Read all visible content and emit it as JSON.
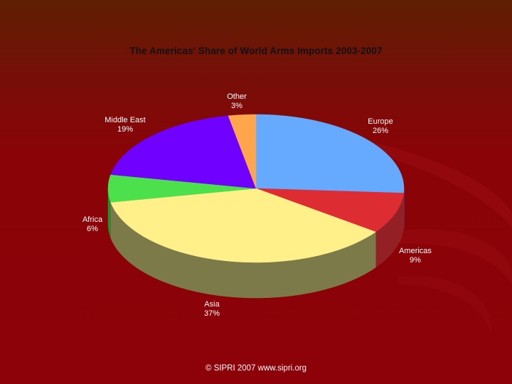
{
  "chart_data": {
    "type": "pie",
    "title": "The Americas' Share of World Arms Imports 2003-2007",
    "slices": [
      {
        "name": "Europe",
        "value": 26,
        "label": "26%",
        "color": "#66aaff",
        "side": "#4a7fc0"
      },
      {
        "name": "Americas",
        "value": 9,
        "label": "9%",
        "color": "#dd2d33",
        "side": "#922024"
      },
      {
        "name": "Asia",
        "value": 37,
        "label": "37%",
        "color": "#fff08a",
        "side": "#7d7a4a"
      },
      {
        "name": "Africa",
        "value": 6,
        "label": "6%",
        "color": "#4de04d",
        "side": "#2e8a2e"
      },
      {
        "name": "Middle East",
        "value": 19,
        "label": "19%",
        "color": "#7000ff",
        "side": "#4a00aa"
      },
      {
        "name": "Other",
        "value": 3,
        "label": "3%",
        "color": "#ffa64d",
        "side": "#b3742f"
      }
    ]
  },
  "footer": "©  SIPRI 2007  www.sipri.org",
  "colors": {
    "background_top": "#5e1f02",
    "background_bottom": "#8c0208"
  }
}
